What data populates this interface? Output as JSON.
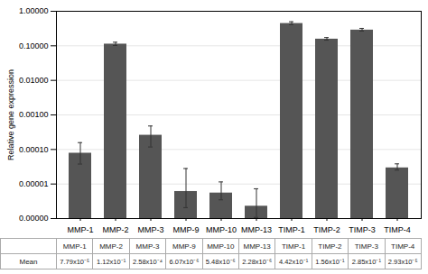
{
  "chart_data": {
    "type": "bar",
    "categories": [
      "MMP-1",
      "MMP-2",
      "MMP-3",
      "MMP-9",
      "MMP-10",
      "MMP-13",
      "TIMP-1",
      "TIMP-2",
      "TIMP-3",
      "TIMP-4"
    ],
    "values": [
      7.79e-05,
      0.112,
      0.000258,
      6.07e-06,
      5.48e-06,
      2.28e-06,
      0.442,
      0.156,
      0.285,
      2.93e-05
    ],
    "value_labels": [
      "7.79x10⁻⁵",
      "1.12x10⁻¹",
      "2.58x10⁻⁴",
      "6.07x10⁻⁶",
      "5.48x10⁻⁶",
      "2.28x10⁻⁶",
      "4.42x10⁻¹",
      "1.56x10⁻¹",
      "2.85x10⁻¹",
      "2.93x10⁻⁵"
    ],
    "table_row_label": "Mean",
    "errors": {
      "upper": [
        8e-05,
        0.015,
        0.00022,
        2.2e-05,
        6e-06,
        5e-06,
        0.055,
        0.018,
        0.035,
        9e-06
      ],
      "lower": [
        4e-05,
        0.01,
        0.00014,
        4e-06,
        2e-06,
        1.2e-06,
        0.028,
        0.01,
        0.018,
        4e-06
      ]
    },
    "color": "#555555",
    "ylabel": "Relative gene expression",
    "log": "y",
    "ylim": [
      1e-06,
      1.0
    ],
    "yticks": [
      {
        "value": 1e-06,
        "label": "0.00000"
      },
      {
        "value": 1e-05,
        "label": "0.00001"
      },
      {
        "value": 0.0001,
        "label": "0.00010"
      },
      {
        "value": 0.001,
        "label": "0.00100"
      },
      {
        "value": 0.01,
        "label": "0.01000"
      },
      {
        "value": 0.1,
        "label": "0.10000"
      },
      {
        "value": 1.0,
        "label": "1.00000"
      }
    ],
    "grid": true
  }
}
